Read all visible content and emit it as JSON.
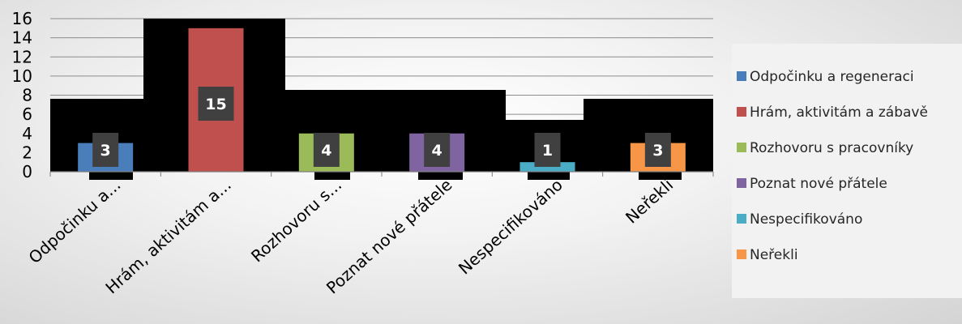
{
  "chart_data": {
    "type": "bar",
    "categories": [
      "Odpočinku a...",
      "Hrám, aktivitám a...",
      "Rozhovoru s...",
      "Poznat nové přátele",
      "Nespecifikováno",
      "Neřekli"
    ],
    "series": [
      {
        "name": "Odpočinku a regeneraci",
        "color": "#4a7ebb",
        "values": [
          3,
          0,
          0,
          0,
          0,
          0
        ]
      },
      {
        "name": "Hrám, aktivitám a zábavě",
        "color": "#c0504d",
        "values": [
          0,
          15,
          0,
          0,
          0,
          0
        ]
      },
      {
        "name": "Rozhovoru s pracovníky",
        "color": "#9bbb59",
        "values": [
          0,
          0,
          4,
          0,
          0,
          0
        ]
      },
      {
        "name": "Poznat nové přátele",
        "color": "#8064a2",
        "values": [
          0,
          0,
          0,
          4,
          0,
          0
        ]
      },
      {
        "name": "Nespecifikováno",
        "color": "#4bacc6",
        "values": [
          0,
          0,
          0,
          0,
          1,
          0
        ]
      },
      {
        "name": "Neřekli",
        "color": "#f79646",
        "values": [
          0,
          0,
          0,
          0,
          0,
          3
        ]
      }
    ],
    "data_labels": [
      "3",
      "15",
      "4",
      "4",
      "1",
      "3"
    ],
    "ylim": [
      0,
      16
    ],
    "yticks": [
      0,
      2,
      4,
      6,
      8,
      10,
      12,
      14,
      16
    ],
    "grid": true,
    "legend_position": "right",
    "title": "",
    "xlabel": "",
    "ylabel": ""
  }
}
